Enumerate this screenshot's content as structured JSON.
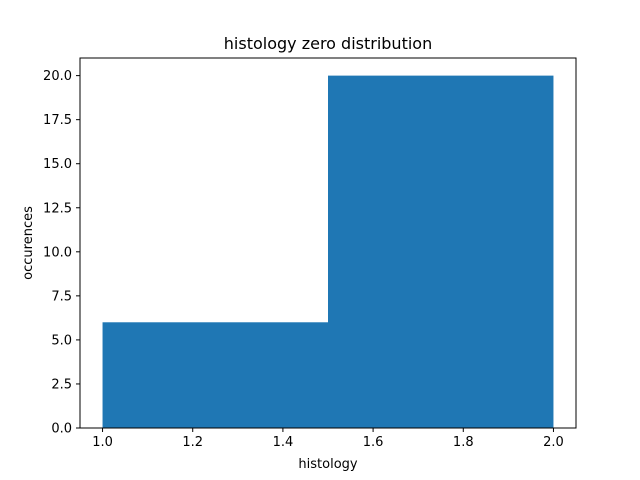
{
  "chart_data": {
    "type": "bar",
    "title": "histology zero distribution",
    "xlabel": "histology",
    "ylabel": "occurences",
    "xlim": [
      0.95,
      2.05
    ],
    "ylim": [
      0,
      21
    ],
    "bins": [
      {
        "x0": 1.0,
        "x1": 1.5,
        "value": 6
      },
      {
        "x0": 1.5,
        "x1": 2.0,
        "value": 20
      }
    ],
    "xticks": [
      1.0,
      1.2,
      1.4,
      1.6,
      1.8,
      2.0
    ],
    "xtick_labels": [
      "1.0",
      "1.2",
      "1.4",
      "1.6",
      "1.8",
      "2.0"
    ],
    "yticks": [
      0,
      2.5,
      5,
      7.5,
      10,
      12.5,
      15,
      17.5,
      20
    ],
    "ytick_labels": [
      "0.0",
      "2.5",
      "5.0",
      "7.5",
      "10.0",
      "12.5",
      "15.0",
      "17.5",
      "20.0"
    ],
    "bar_color": "#1f77b4",
    "grid": false,
    "legend": "none"
  }
}
